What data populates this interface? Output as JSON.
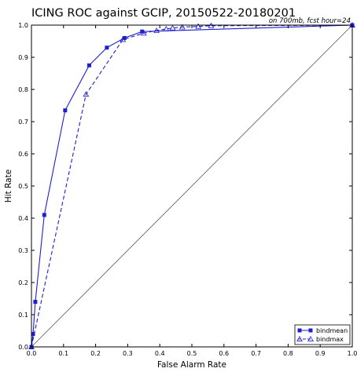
{
  "chart_data": {
    "type": "line",
    "title": "ICING ROC against GCIP, 20150522-20180201",
    "subtitle": "on 700mb, fcst hour=24",
    "xlabel": "False Alarm Rate",
    "ylabel": "Hit Rate",
    "xlim": [
      0.0,
      1.0
    ],
    "ylim": [
      0.0,
      1.0
    ],
    "xticks": [
      "0.0",
      "0.1",
      "0.2",
      "0.3",
      "0.4",
      "0.5",
      "0.6",
      "0.7",
      "0.8",
      "0.9",
      "1.0"
    ],
    "yticks": [
      "0.0",
      "0.1",
      "0.2",
      "0.3",
      "0.4",
      "0.5",
      "0.6",
      "0.7",
      "0.8",
      "0.9",
      "1.0"
    ],
    "grid": false,
    "legend_position": "bottom-right",
    "reference_line": {
      "x": [
        0,
        1
      ],
      "y": [
        0,
        1
      ],
      "color": "#555555"
    },
    "series": [
      {
        "name": "bindmean",
        "style": "solid",
        "marker": "square",
        "color": "#1f1fcc",
        "x": [
          0.0,
          0.005,
          0.012,
          0.04,
          0.105,
          0.18,
          0.235,
          0.29,
          0.345,
          1.0
        ],
        "y": [
          0.0,
          0.04,
          0.14,
          0.41,
          0.735,
          0.875,
          0.93,
          0.96,
          0.98,
          1.0
        ]
      },
      {
        "name": "bindmax",
        "style": "dashed",
        "marker": "triangle",
        "color": "#1f1fcc",
        "x": [
          0.0,
          0.17,
          0.285,
          0.35,
          0.39,
          0.42,
          0.44,
          0.47,
          0.52,
          0.56,
          1.0
        ],
        "y": [
          0.0,
          0.785,
          0.955,
          0.975,
          0.983,
          0.988,
          0.991,
          0.994,
          0.996,
          0.998,
          1.0
        ]
      }
    ]
  }
}
